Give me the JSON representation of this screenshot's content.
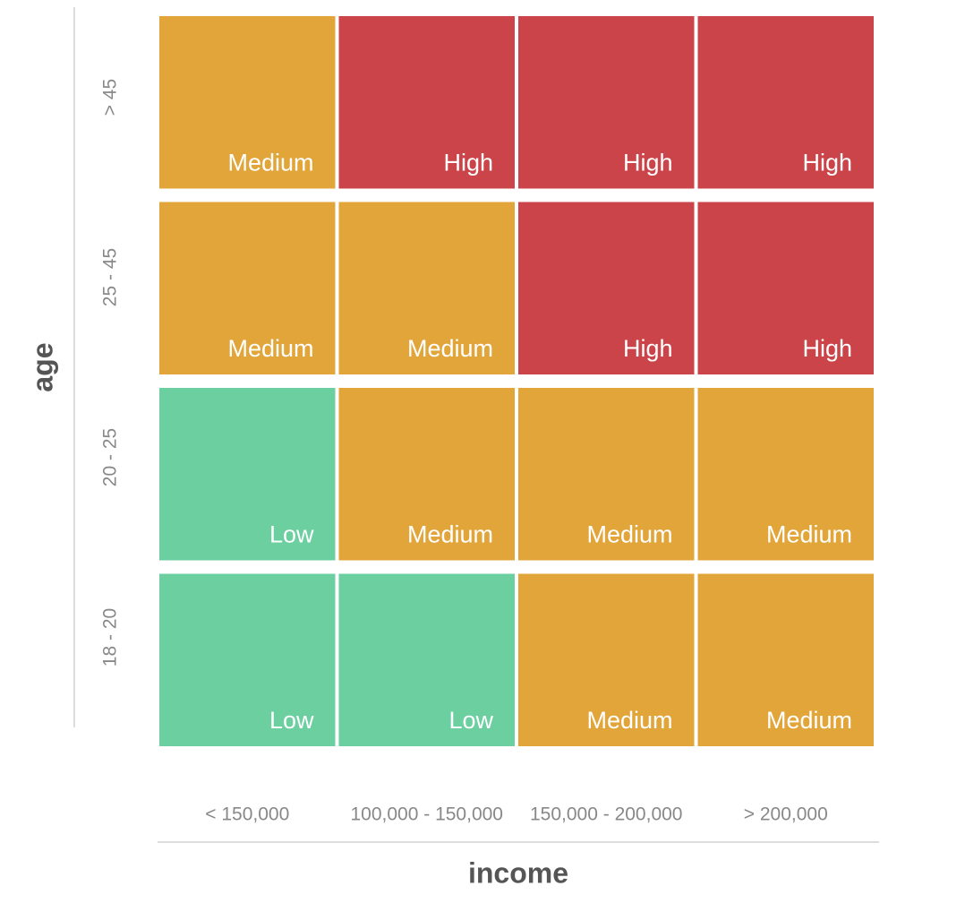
{
  "chart_data": {
    "type": "heatmap",
    "x_label": "income",
    "y_label": "age",
    "x_categories": [
      "< 150,000",
      "100,000 - 150,000",
      "150,000 - 200,000",
      "> 200,000"
    ],
    "y_categories": [
      "> 45",
      "25 - 45",
      "20 - 25",
      "18 - 20"
    ],
    "cells": [
      [
        "Medium",
        "High",
        "High",
        "High"
      ],
      [
        "Medium",
        "Medium",
        "High",
        "High"
      ],
      [
        "Low",
        "Medium",
        "Medium",
        "Medium"
      ],
      [
        "Low",
        "Low",
        "Medium",
        "Medium"
      ]
    ],
    "level_colors": {
      "Low": "#6bcfa0",
      "Medium": "#e2a53a",
      "High": "#cb444a"
    }
  }
}
